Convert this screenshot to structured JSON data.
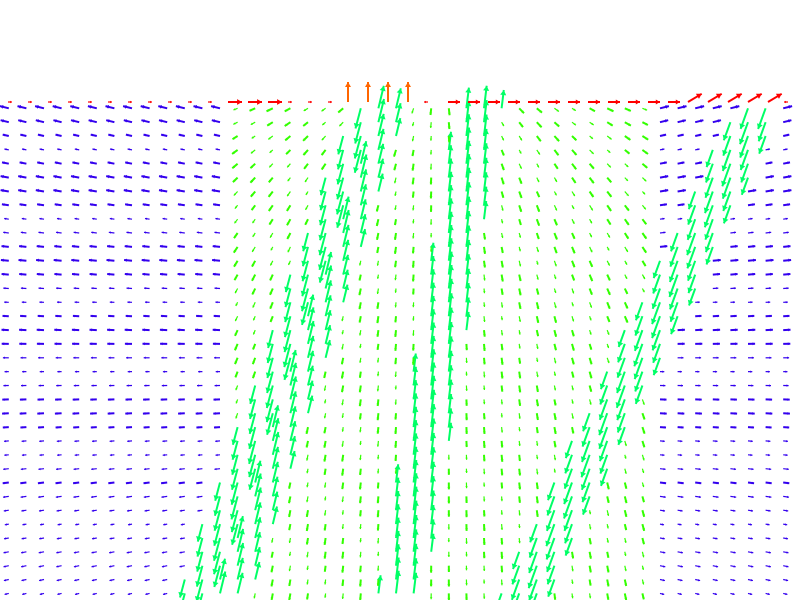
{
  "chart_data": {
    "type": "quiver",
    "title": "",
    "xlabel": "",
    "ylabel": "",
    "xlim": [
      0,
      1
    ],
    "ylim": [
      0,
      1
    ],
    "grid": false,
    "legend": "none",
    "colormap": [
      "#3300ee",
      "#00ccff",
      "#00ff66",
      "#33ff00",
      "#ffdd00",
      "#ff6600",
      "#ff0000"
    ],
    "field": {
      "free_surface_y": 0.83,
      "bands": [
        {
          "name": "left-lower-band",
          "x0": 0.28,
          "y0": 0.0,
          "x1": 0.48,
          "y1": 0.83
        },
        {
          "name": "left-center-band",
          "x0": 0.25,
          "y0": 0.0,
          "x1": 0.47,
          "y1": 0.83
        },
        {
          "name": "center-band",
          "x0": 0.5,
          "y0": 0.0,
          "x1": 0.6,
          "y1": 0.83
        },
        {
          "name": "right-band",
          "x0": 0.65,
          "y0": 0.0,
          "x1": 0.95,
          "y1": 0.83
        }
      ]
    }
  }
}
